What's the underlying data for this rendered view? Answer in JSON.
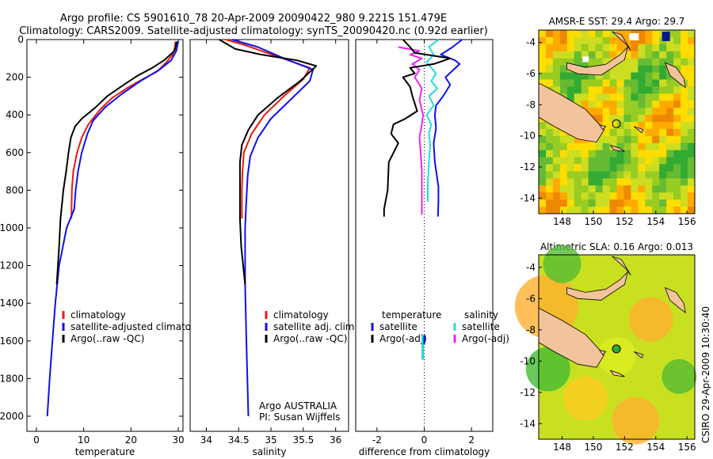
{
  "header": {
    "line1": "Argo profile: CS 5901610_78 20-Apr-2009 20090422_980 9.221S 151.479E",
    "line2": "Climatology: CARS2009. Satellite-adjusted climatology: synTS_20090420.nc (0.92d earlier)"
  },
  "side_label": "CSIRO 29-Apr-2009 10:30:40",
  "colors": {
    "climatology": "#e8190f",
    "satellite": "#1010ee",
    "argo": "#000000",
    "sat_salinity": "#22dddd",
    "argo_salinity_adj": "#ee22ee",
    "land": "#f3c39b"
  },
  "chart_data": [
    {
      "type": "line",
      "title": "",
      "xlabel": "temperature",
      "ylabel": "",
      "xlim": [
        -2,
        31
      ],
      "ylim": [
        2080,
        0
      ],
      "xticks": [
        "0",
        "10",
        "20",
        "30"
      ],
      "yticks": [
        "0",
        "200",
        "400",
        "600",
        "800",
        "1000",
        "1200",
        "1400",
        "1600",
        "1800",
        "2000"
      ],
      "legend": [
        "climatology",
        "satellite-adjusted climatology",
        "Argo(..raw -QC)"
      ],
      "legend_position": "lower-right",
      "series": [
        {
          "name": "climatology",
          "points": [
            [
              29.4,
              10
            ],
            [
              29.3,
              40
            ],
            [
              28.8,
              80
            ],
            [
              27.5,
              120
            ],
            [
              25.5,
              170
            ],
            [
              22.5,
              210
            ],
            [
              19,
              260
            ],
            [
              16,
              310
            ],
            [
              13.5,
              370
            ],
            [
              11,
              450
            ],
            [
              9.6,
              520
            ],
            [
              8.6,
              600
            ],
            [
              7.8,
              700
            ],
            [
              7.5,
              800
            ],
            [
              7.4,
              950
            ]
          ]
        },
        {
          "name": "satellite-adjusted climatology",
          "points": [
            [
              30,
              10
            ],
            [
              29.6,
              60
            ],
            [
              28.5,
              110
            ],
            [
              26,
              160
            ],
            [
              22,
              220
            ],
            [
              18,
              290
            ],
            [
              14.5,
              360
            ],
            [
              12,
              430
            ],
            [
              10.8,
              500
            ],
            [
              9.6,
              600
            ],
            [
              8.8,
              700
            ],
            [
              8.3,
              800
            ],
            [
              8,
              900
            ],
            [
              6.4,
              1000
            ],
            [
              4.8,
              1200
            ],
            [
              4,
              1400
            ],
            [
              3.4,
              1600
            ],
            [
              2.8,
              1800
            ],
            [
              2.3,
              2000
            ]
          ]
        },
        {
          "name": "Argo(..raw -QC)",
          "points": [
            [
              29.7,
              10
            ],
            [
              29.2,
              60
            ],
            [
              27,
              110
            ],
            [
              24.5,
              150
            ],
            [
              21.5,
              190
            ],
            [
              18.5,
              240
            ],
            [
              15,
              300
            ],
            [
              12.5,
              360
            ],
            [
              9.6,
              420
            ],
            [
              8.2,
              460
            ],
            [
              7.3,
              520
            ],
            [
              6.8,
              600
            ],
            [
              6.3,
              700
            ],
            [
              5.7,
              800
            ],
            [
              5.1,
              950
            ],
            [
              4.8,
              1100
            ],
            [
              4.3,
              1300
            ]
          ]
        }
      ]
    },
    {
      "type": "line",
      "title": "",
      "xlabel": "salinity",
      "ylabel": "",
      "xlim": [
        33.75,
        36.2
      ],
      "ylim": [
        2080,
        0
      ],
      "xticks": [
        "34",
        "34.5",
        "35",
        "35.5",
        "36"
      ],
      "yticks": [],
      "legend": [
        "climatology",
        "satellite adj. clim.",
        "Argo(..raw -QC)"
      ],
      "legend_position": "lower-right",
      "annotations": [
        "Argo AUSTRALIA",
        "PI: Susan Wijffels"
      ],
      "series": [
        {
          "name": "climatology",
          "points": [
            [
              34.3,
              0
            ],
            [
              34.6,
              30
            ],
            [
              35.1,
              90
            ],
            [
              35.6,
              150
            ],
            [
              35.5,
              210
            ],
            [
              35.2,
              300
            ],
            [
              34.9,
              400
            ],
            [
              34.7,
              500
            ],
            [
              34.58,
              600
            ],
            [
              34.56,
              700
            ],
            [
              34.55,
              800
            ],
            [
              34.55,
              950
            ]
          ]
        },
        {
          "name": "satellite adj. clim.",
          "points": [
            [
              34.4,
              0
            ],
            [
              34.8,
              40
            ],
            [
              35.2,
              100
            ],
            [
              35.65,
              160
            ],
            [
              35.6,
              220
            ],
            [
              35.3,
              320
            ],
            [
              35,
              420
            ],
            [
              34.8,
              520
            ],
            [
              34.68,
              620
            ],
            [
              34.64,
              720
            ],
            [
              34.62,
              850
            ],
            [
              34.6,
              1000
            ],
            [
              34.6,
              1300
            ],
            [
              34.62,
              1600
            ],
            [
              34.65,
              2000
            ]
          ]
        },
        {
          "name": "Argo(..raw -QC)",
          "points": [
            [
              34.2,
              0
            ],
            [
              34.45,
              50
            ],
            [
              34.85,
              80
            ],
            [
              35.4,
              110
            ],
            [
              35.7,
              140
            ],
            [
              35.45,
              220
            ],
            [
              35.1,
              310
            ],
            [
              34.8,
              400
            ],
            [
              34.65,
              480
            ],
            [
              34.55,
              560
            ],
            [
              34.52,
              650
            ],
            [
              34.52,
              800
            ],
            [
              34.52,
              950
            ],
            [
              34.54,
              1100
            ],
            [
              34.6,
              1300
            ]
          ]
        }
      ]
    },
    {
      "type": "line",
      "title": "",
      "xlabel": "difference from climatology",
      "ylabel": "",
      "xlim": [
        -2.9,
        2.9
      ],
      "ylim": [
        2080,
        0
      ],
      "xticks": [
        "-2",
        "0",
        "2"
      ],
      "yticks": [],
      "legend": [
        "temperature",
        "satellite",
        "Argo(-adj)",
        "salinity",
        "satellite",
        "Argo(-adj)"
      ],
      "legend_position": "lower-center",
      "series": [
        {
          "name": "temperature satellite",
          "points": [
            [
              1.6,
              0
            ],
            [
              1.2,
              40
            ],
            [
              0.7,
              80
            ],
            [
              1.3,
              110
            ],
            [
              1.5,
              130
            ],
            [
              0.9,
              200
            ],
            [
              1.1,
              240
            ],
            [
              0.8,
              300
            ],
            [
              0.5,
              350
            ],
            [
              0.45,
              400
            ],
            [
              0.5,
              470
            ],
            [
              0.4,
              550
            ],
            [
              0.45,
              650
            ],
            [
              0.6,
              780
            ],
            [
              0.6,
              860
            ],
            [
              0.58,
              940
            ]
          ]
        },
        {
          "name": "salinity satellite",
          "points": [
            [
              0.6,
              0
            ],
            [
              0.2,
              40
            ],
            [
              0.4,
              80
            ],
            [
              0.1,
              120
            ],
            [
              0.5,
              180
            ],
            [
              0.3,
              220
            ],
            [
              0.55,
              260
            ],
            [
              0.2,
              300
            ],
            [
              0.4,
              350
            ],
            [
              0.1,
              400
            ],
            [
              0.3,
              450
            ],
            [
              0.2,
              500
            ],
            [
              0.25,
              560
            ],
            [
              0.2,
              650
            ],
            [
              0.15,
              760
            ],
            [
              0.15,
              860
            ]
          ]
        },
        {
          "name": "salinity Argo(-adj)",
          "points": [
            [
              -1.1,
              40
            ],
            [
              -0.2,
              60
            ],
            [
              -0.6,
              80
            ],
            [
              -0.1,
              100
            ],
            [
              -0.5,
              130
            ],
            [
              -0.2,
              160
            ],
            [
              -0.4,
              200
            ],
            [
              -0.1,
              260
            ],
            [
              -0.2,
              320
            ],
            [
              -0.05,
              400
            ],
            [
              -0.1,
              450
            ],
            [
              -0.2,
              520
            ],
            [
              -0.15,
              600
            ],
            [
              -0.1,
              700
            ],
            [
              -0.1,
              800
            ],
            [
              -0.1,
              930
            ]
          ]
        },
        {
          "name": "temperature Argo(-adj)",
          "points": [
            [
              -0.9,
              0
            ],
            [
              -0.6,
              40
            ],
            [
              -0.4,
              70
            ],
            [
              1.1,
              100
            ],
            [
              0.4,
              130
            ],
            [
              -0.6,
              150
            ],
            [
              -0.4,
              180
            ],
            [
              -0.9,
              200
            ],
            [
              -0.6,
              250
            ],
            [
              -0.5,
              300
            ],
            [
              -0.3,
              380
            ],
            [
              -0.8,
              420
            ],
            [
              -1.3,
              450
            ],
            [
              -1.4,
              500
            ],
            [
              -1.1,
              550
            ],
            [
              -1.5,
              650
            ],
            [
              -1.55,
              800
            ],
            [
              -1.7,
              900
            ],
            [
              -1.7,
              940
            ]
          ]
        }
      ]
    },
    {
      "type": "heatmap",
      "title": "AMSR-E SST: 29.4 Argo: 29.7",
      "xlabel": "",
      "ylabel": "",
      "xlim": [
        146.5,
        156.5
      ],
      "ylim": [
        -15,
        -3.2
      ],
      "xticks": [
        "148",
        "150",
        "152",
        "154",
        "156"
      ],
      "yticks": [
        "-4",
        "-6",
        "-8",
        "-10",
        "-12",
        "-14"
      ],
      "marker": [
        151.479,
        -9.221
      ]
    },
    {
      "type": "heatmap",
      "title": "Altimetric SLA: 0.16 Argo: 0.013",
      "xlabel": "",
      "ylabel": "",
      "xlim": [
        146.5,
        156.5
      ],
      "ylim": [
        -15,
        -3.2
      ],
      "xticks": [
        "148",
        "150",
        "152",
        "154",
        "156"
      ],
      "yticks": [
        "-4",
        "-6",
        "-8",
        "-10",
        "-12",
        "-14"
      ],
      "marker": [
        151.479,
        -9.221
      ]
    }
  ]
}
